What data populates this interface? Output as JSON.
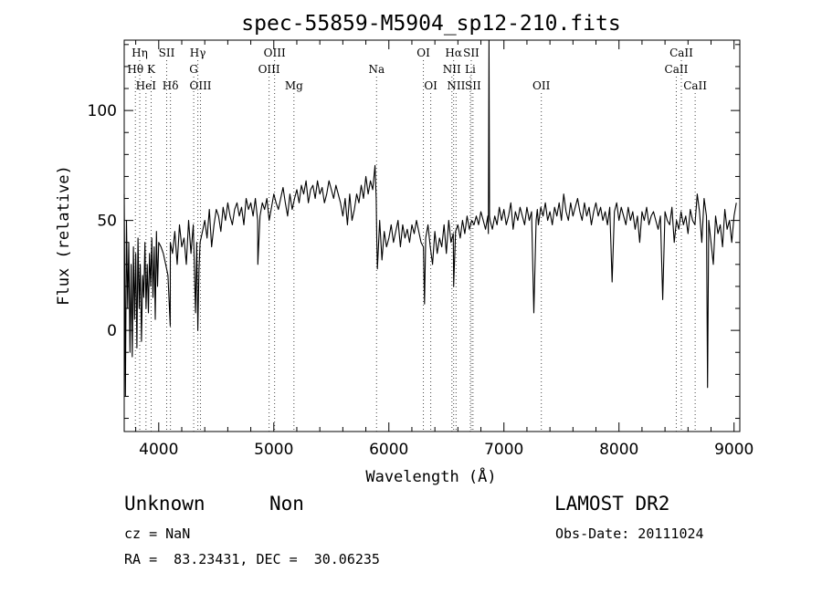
{
  "chart_data": {
    "type": "line",
    "title": "spec-55859-M5904_sp12-210.fits",
    "xlabel": "Wavelength (Å)",
    "ylabel": "Flux (relative)",
    "xlim": [
      3700,
      9050
    ],
    "ylim": [
      -46,
      132
    ],
    "xticks": [
      4000,
      5000,
      6000,
      7000,
      8000,
      9000
    ],
    "yticks": [
      0,
      50,
      100
    ],
    "series": [
      {
        "x": [
          3700,
          3710,
          3720,
          3730,
          3740,
          3750,
          3760,
          3770,
          3780,
          3790,
          3800,
          3810,
          3820,
          3830,
          3840,
          3850,
          3860,
          3870,
          3880,
          3890,
          3900,
          3910,
          3920,
          3930,
          3940,
          3950,
          3960,
          3970,
          3980,
          3990,
          4000,
          4020,
          4040,
          4060,
          4080,
          4100,
          4101,
          4120,
          4140,
          4160,
          4180,
          4200,
          4220,
          4240,
          4260,
          4280,
          4300,
          4320,
          4330,
          4340,
          4350,
          4360,
          4380,
          4400,
          4420,
          4440,
          4460,
          4480,
          4500,
          4520,
          4540,
          4560,
          4580,
          4600,
          4620,
          4640,
          4660,
          4680,
          4700,
          4720,
          4740,
          4760,
          4780,
          4800,
          4820,
          4840,
          4860,
          4861,
          4880,
          4900,
          4920,
          4940,
          4960,
          4980,
          5000,
          5020,
          5040,
          5060,
          5080,
          5100,
          5120,
          5140,
          5160,
          5180,
          5200,
          5220,
          5240,
          5260,
          5280,
          5300,
          5320,
          5340,
          5360,
          5380,
          5400,
          5420,
          5440,
          5460,
          5480,
          5500,
          5520,
          5540,
          5560,
          5580,
          5600,
          5620,
          5640,
          5660,
          5680,
          5700,
          5720,
          5740,
          5760,
          5780,
          5800,
          5820,
          5840,
          5860,
          5880,
          5890,
          5895,
          5900,
          5920,
          5940,
          5960,
          5980,
          6000,
          6020,
          6040,
          6060,
          6080,
          6100,
          6120,
          6140,
          6160,
          6180,
          6200,
          6220,
          6240,
          6260,
          6280,
          6300,
          6310,
          6320,
          6340,
          6360,
          6380,
          6400,
          6420,
          6440,
          6460,
          6480,
          6500,
          6520,
          6540,
          6560,
          6563,
          6580,
          6600,
          6620,
          6640,
          6660,
          6680,
          6700,
          6720,
          6740,
          6760,
          6780,
          6800,
          6820,
          6840,
          6860,
          6865,
          6870,
          6875,
          6880,
          6900,
          6920,
          6940,
          6960,
          6980,
          7000,
          7020,
          7040,
          7060,
          7080,
          7100,
          7120,
          7140,
          7160,
          7180,
          7200,
          7220,
          7240,
          7260,
          7280,
          7290,
          7300,
          7320,
          7340,
          7360,
          7380,
          7400,
          7420,
          7440,
          7460,
          7480,
          7500,
          7520,
          7540,
          7560,
          7580,
          7600,
          7620,
          7640,
          7660,
          7680,
          7700,
          7720,
          7740,
          7760,
          7780,
          7800,
          7820,
          7840,
          7860,
          7880,
          7900,
          7920,
          7940,
          7960,
          7980,
          8000,
          8020,
          8040,
          8060,
          8080,
          8100,
          8120,
          8140,
          8160,
          8180,
          8200,
          8220,
          8240,
          8260,
          8280,
          8300,
          8320,
          8340,
          8360,
          8380,
          8400,
          8420,
          8440,
          8460,
          8480,
          8500,
          8520,
          8540,
          8560,
          8580,
          8600,
          8620,
          8640,
          8660,
          8680,
          8700,
          8720,
          8740,
          8760,
          8770,
          8780,
          8800,
          8820,
          8840,
          8860,
          8880,
          8900,
          8920,
          8940,
          8960,
          8980,
          9000,
          9020
        ],
        "y": [
          62,
          -30,
          50,
          10,
          40,
          -10,
          30,
          -12,
          38,
          5,
          35,
          -8,
          42,
          10,
          30,
          -5,
          25,
          15,
          40,
          10,
          30,
          8,
          35,
          20,
          42,
          15,
          38,
          5,
          45,
          20,
          40,
          38,
          35,
          30,
          25,
          2,
          40,
          35,
          45,
          30,
          48,
          38,
          42,
          30,
          50,
          35,
          48,
          8,
          40,
          0,
          28,
          40,
          45,
          50,
          42,
          55,
          38,
          48,
          55,
          52,
          45,
          56,
          50,
          58,
          52,
          48,
          55,
          58,
          52,
          56,
          48,
          60,
          55,
          58,
          52,
          60,
          50,
          30,
          52,
          58,
          55,
          60,
          50,
          56,
          62,
          58,
          55,
          60,
          65,
          58,
          52,
          62,
          55,
          60,
          64,
          58,
          66,
          62,
          68,
          58,
          64,
          66,
          60,
          68,
          62,
          65,
          58,
          62,
          68,
          64,
          60,
          66,
          62,
          58,
          52,
          60,
          48,
          62,
          50,
          55,
          62,
          58,
          66,
          60,
          70,
          62,
          68,
          64,
          75,
          60,
          42,
          28,
          50,
          32,
          45,
          38,
          42,
          48,
          40,
          45,
          50,
          38,
          48,
          42,
          46,
          40,
          48,
          44,
          50,
          45,
          40,
          38,
          12,
          42,
          48,
          38,
          30,
          45,
          35,
          42,
          38,
          48,
          35,
          50,
          40,
          44,
          20,
          45,
          48,
          42,
          50,
          44,
          52,
          46,
          50,
          48,
          52,
          48,
          54,
          50,
          46,
          52,
          44,
          140,
          52,
          50,
          46,
          52,
          48,
          56,
          50,
          55,
          48,
          52,
          58,
          46,
          54,
          50,
          56,
          52,
          48,
          56,
          50,
          54,
          8,
          50,
          55,
          48,
          56,
          52,
          58,
          50,
          54,
          48,
          56,
          52,
          58,
          50,
          62,
          54,
          50,
          58,
          52,
          56,
          60,
          54,
          50,
          58,
          52,
          56,
          48,
          54,
          58,
          52,
          56,
          50,
          54,
          48,
          56,
          22,
          54,
          58,
          50,
          56,
          52,
          48,
          56,
          50,
          54,
          46,
          52,
          40,
          54,
          50,
          56,
          48,
          52,
          54,
          50,
          46,
          52,
          14,
          54,
          50,
          48,
          56,
          40,
          50,
          46,
          54,
          48,
          52,
          44,
          55,
          50,
          48,
          62,
          54,
          40,
          60,
          52,
          -26,
          50,
          40,
          30,
          52,
          44,
          48,
          38,
          55,
          46,
          50,
          40,
          52,
          58
        ]
      }
    ],
    "line_markers": [
      {
        "label": "Hη",
        "x": 3835,
        "row": 1
      },
      {
        "label": "Hθ",
        "x": 3797,
        "row": 2
      },
      {
        "label": "K",
        "x": 3934,
        "row": 2
      },
      {
        "label": "HeI",
        "x": 3889,
        "row": 3
      },
      {
        "label": "SII",
        "x": 4069,
        "row": 1
      },
      {
        "label": "Hδ",
        "x": 4102,
        "row": 3
      },
      {
        "label": "Hγ",
        "x": 4340,
        "row": 1
      },
      {
        "label": "G",
        "x": 4304,
        "row": 2
      },
      {
        "label": "OIII",
        "x": 4363,
        "row": 3
      },
      {
        "label": "OIII",
        "x": 5007,
        "row": 1
      },
      {
        "label": "OIII",
        "x": 4959,
        "row": 2
      },
      {
        "label": "Mg",
        "x": 5175,
        "row": 3
      },
      {
        "label": "Na",
        "x": 5893,
        "row": 2
      },
      {
        "label": "OI",
        "x": 6300,
        "row": 1
      },
      {
        "label": "OI",
        "x": 6364,
        "row": 3
      },
      {
        "label": "Hα",
        "x": 6563,
        "row": 1
      },
      {
        "label": "SII",
        "x": 6716,
        "row": 1
      },
      {
        "label": "NII",
        "x": 6548,
        "row": 2
      },
      {
        "label": "Li",
        "x": 6708,
        "row": 2
      },
      {
        "label": "NII",
        "x": 6584,
        "row": 3
      },
      {
        "label": "SII",
        "x": 6731,
        "row": 3
      },
      {
        "label": "OII",
        "x": 7325,
        "row": 3
      },
      {
        "label": "CaII",
        "x": 8542,
        "row": 1
      },
      {
        "label": "CaII",
        "x": 8498,
        "row": 2
      },
      {
        "label": "CaII",
        "x": 8662,
        "row": 3
      }
    ],
    "info": {
      "classification": "Unknown",
      "subclass": "Non",
      "survey": "LAMOST DR2",
      "cz": "cz = NaN",
      "obs_date": "Obs-Date: 20111024",
      "coords": "RA =  83.23431, DEC =  30.06235"
    }
  }
}
